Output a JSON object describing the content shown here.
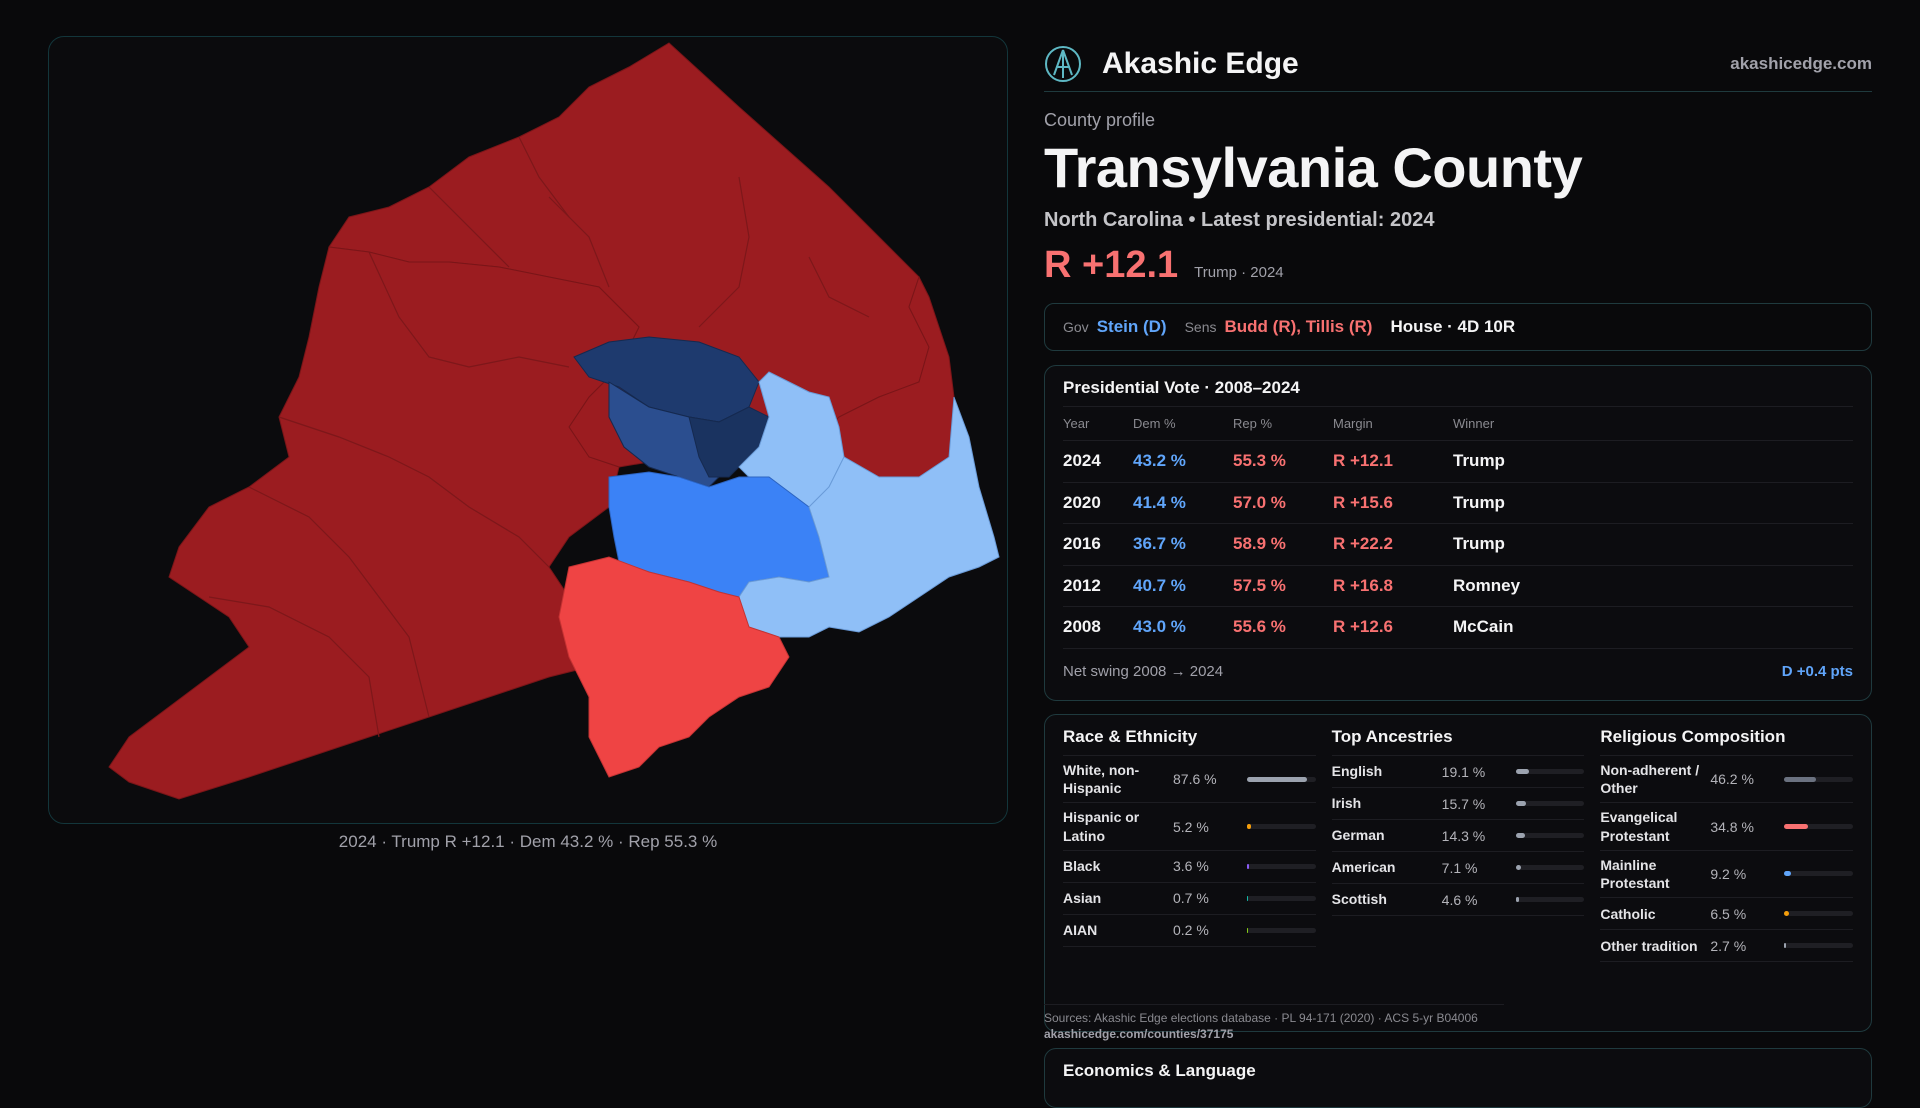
{
  "brand": {
    "name": "Akashic Edge",
    "url": "akashicedge.com",
    "logo_icon": "globe-logo-icon"
  },
  "profile": {
    "kicker": "County profile",
    "county": "Transylvania County",
    "subtitle": "North Carolina • Latest presidential: 2024",
    "margin": "R +12.1",
    "margin_note": "Trump · 2024"
  },
  "officials": {
    "gov_label": "Gov",
    "gov": "Stein (D)",
    "sens_label": "Sens",
    "sens": "Budd (R), Tillis (R)",
    "house": "House · 4D 10R"
  },
  "presidential": {
    "title": "Presidential Vote · 2008–2024",
    "columns": [
      "Year",
      "Dem %",
      "Rep %",
      "Margin",
      "Winner"
    ],
    "rows": [
      {
        "year": "2024",
        "dem": "43.2 %",
        "rep": "55.3 %",
        "margin": "R +12.1",
        "winner": "Trump"
      },
      {
        "year": "2020",
        "dem": "41.4 %",
        "rep": "57.0 %",
        "margin": "R +15.6",
        "winner": "Trump"
      },
      {
        "year": "2016",
        "dem": "36.7 %",
        "rep": "58.9 %",
        "margin": "R +22.2",
        "winner": "Trump"
      },
      {
        "year": "2012",
        "dem": "40.7 %",
        "rep": "57.5 %",
        "margin": "R +16.8",
        "winner": "Romney"
      },
      {
        "year": "2008",
        "dem": "43.0 %",
        "rep": "55.6 %",
        "margin": "R +12.6",
        "winner": "McCain"
      }
    ],
    "swing_label": "Net swing 2008 → 2024",
    "swing_value": "D +0.4 pts"
  },
  "race": {
    "title": "Race & Ethnicity",
    "items": [
      {
        "label": "White, non-Hispanic",
        "value": "87.6 %",
        "pct": 87.6,
        "color": "#9ca3af"
      },
      {
        "label": "Hispanic or Latino",
        "value": "5.2 %",
        "pct": 5.2,
        "color": "#f59e0b"
      },
      {
        "label": "Black",
        "value": "3.6 %",
        "pct": 3.6,
        "color": "#8b5cf6"
      },
      {
        "label": "Asian",
        "value": "0.7 %",
        "pct": 0.7,
        "color": "#14b8a6"
      },
      {
        "label": "AIAN",
        "value": "0.2 %",
        "pct": 0.2,
        "color": "#84cc16"
      }
    ]
  },
  "ancestry": {
    "title": "Top Ancestries",
    "items": [
      {
        "label": "English",
        "value": "19.1 %",
        "pct": 19.1,
        "color": "#9ca3af"
      },
      {
        "label": "Irish",
        "value": "15.7 %",
        "pct": 15.7,
        "color": "#9ca3af"
      },
      {
        "label": "German",
        "value": "14.3 %",
        "pct": 14.3,
        "color": "#9ca3af"
      },
      {
        "label": "American",
        "value": "7.1 %",
        "pct": 7.1,
        "color": "#9ca3af"
      },
      {
        "label": "Scottish",
        "value": "4.6 %",
        "pct": 4.6,
        "color": "#9ca3af"
      }
    ]
  },
  "religion": {
    "title": "Religious Composition",
    "items": [
      {
        "label": "Non-adherent / Other",
        "value": "46.2 %",
        "pct": 46.2,
        "color": "#6b7280"
      },
      {
        "label": "Evangelical Protestant",
        "value": "34.8 %",
        "pct": 34.8,
        "color": "#f87171"
      },
      {
        "label": "Mainline Protestant",
        "value": "9.2 %",
        "pct": 9.2,
        "color": "#60a5fa"
      },
      {
        "label": "Catholic",
        "value": "6.5 %",
        "pct": 6.5,
        "color": "#f59e0b"
      },
      {
        "label": "Other tradition",
        "value": "2.7 %",
        "pct": 2.7,
        "color": "#9ca3af"
      }
    ]
  },
  "sources": {
    "text": "Sources: Akashic Edge elections database · PL 94-171 (2020) · ACS 5-yr B04006",
    "url": "akashicedge.com/counties/37175"
  },
  "economics": {
    "title": "Economics & Language"
  },
  "map": {
    "caption": "2024 · Trump R +12.1 · Dem 43.2 % · Rep 55.3 %",
    "colors": {
      "strong_rep": "#991b1e",
      "lean_rep": "#ef4444",
      "strong_dem": "#1e3a8a",
      "mid_dem": "#3b82f6",
      "lean_dem": "#93c5fd"
    }
  }
}
